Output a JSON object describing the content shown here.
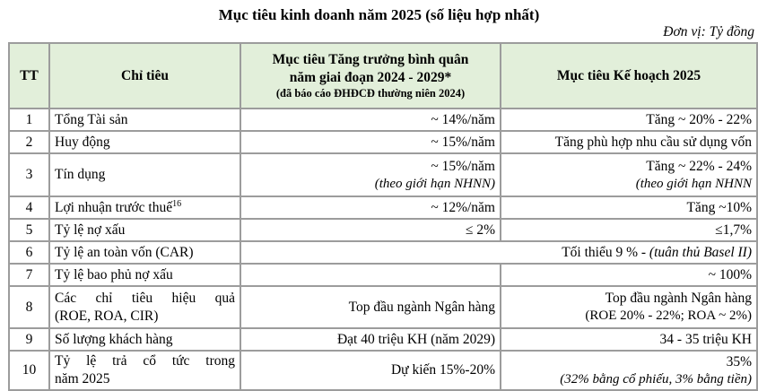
{
  "title": "Mục tiêu kinh doanh năm 2025 (số liệu hợp nhất)",
  "unit_note": "Đơn vị: Tỷ đồng",
  "table": {
    "headers": {
      "tt": "TT",
      "indicator": "Chỉ tiêu",
      "growth_line1": "Mục tiêu Tăng trưởng bình quân",
      "growth_line2": "năm giai đoạn 2024 - 2029*",
      "growth_line3": "(đã báo cáo ĐHĐCĐ thường niên 2024)",
      "plan": "Mục tiêu Kế hoạch 2025"
    },
    "rows": [
      {
        "tt": "1",
        "indicator": "Tổng Tài sản",
        "growth": "~ 14%/năm",
        "plan": "Tăng ~ 20% - 22%"
      },
      {
        "tt": "2",
        "indicator": "Huy động",
        "growth": "~ 15%/năm",
        "plan": "Tăng phù hợp nhu cầu sử dụng vốn"
      },
      {
        "tt": "3",
        "indicator": "Tín dụng",
        "growth": "~ 15%/năm",
        "growth_note": "(theo giới hạn NHNN)",
        "plan": "Tăng ~ 22% - 24%",
        "plan_note": "(theo giới hạn NHNN"
      },
      {
        "tt": "4",
        "indicator": "Lợi nhuận trước thuế",
        "indicator_sup": "16",
        "growth": "~ 12%/năm",
        "plan": "Tăng ~10%"
      },
      {
        "tt": "5",
        "indicator": "Tỷ lệ nợ xấu",
        "growth": "≤ 2%",
        "plan": "≤1,7%"
      },
      {
        "tt": "6",
        "indicator": "Tỷ lệ an toàn vốn (CAR)",
        "merged_text": "Tối thiểu 9 % - ",
        "merged_note": "(tuân thủ Basel II)"
      },
      {
        "tt": "7",
        "indicator": "Tỷ lệ bao phủ nợ xấu",
        "growth": "",
        "plan": "~ 100%"
      },
      {
        "tt": "8",
        "indicator": "Các chỉ tiêu hiệu quả",
        "indicator2": "(ROE, ROA, CIR)",
        "growth": "Top đầu ngành Ngân hàng",
        "plan": "Top đầu ngành Ngân hàng",
        "plan_note": "(ROE 20% - 22%; ROA ~ 2%)"
      },
      {
        "tt": "9",
        "indicator": "Số lượng khách hàng",
        "growth": "Đạt 40 triệu KH (năm 2029)",
        "plan": "34 - 35 triệu KH"
      },
      {
        "tt": "10",
        "indicator": "Tỷ lệ trả cổ tức trong",
        "indicator2": "năm 2025",
        "growth": "Dự kiến 15%-20%",
        "plan": "35%",
        "plan_note": "(32% bằng cổ phiếu, 3% bằng tiền)"
      }
    ]
  }
}
